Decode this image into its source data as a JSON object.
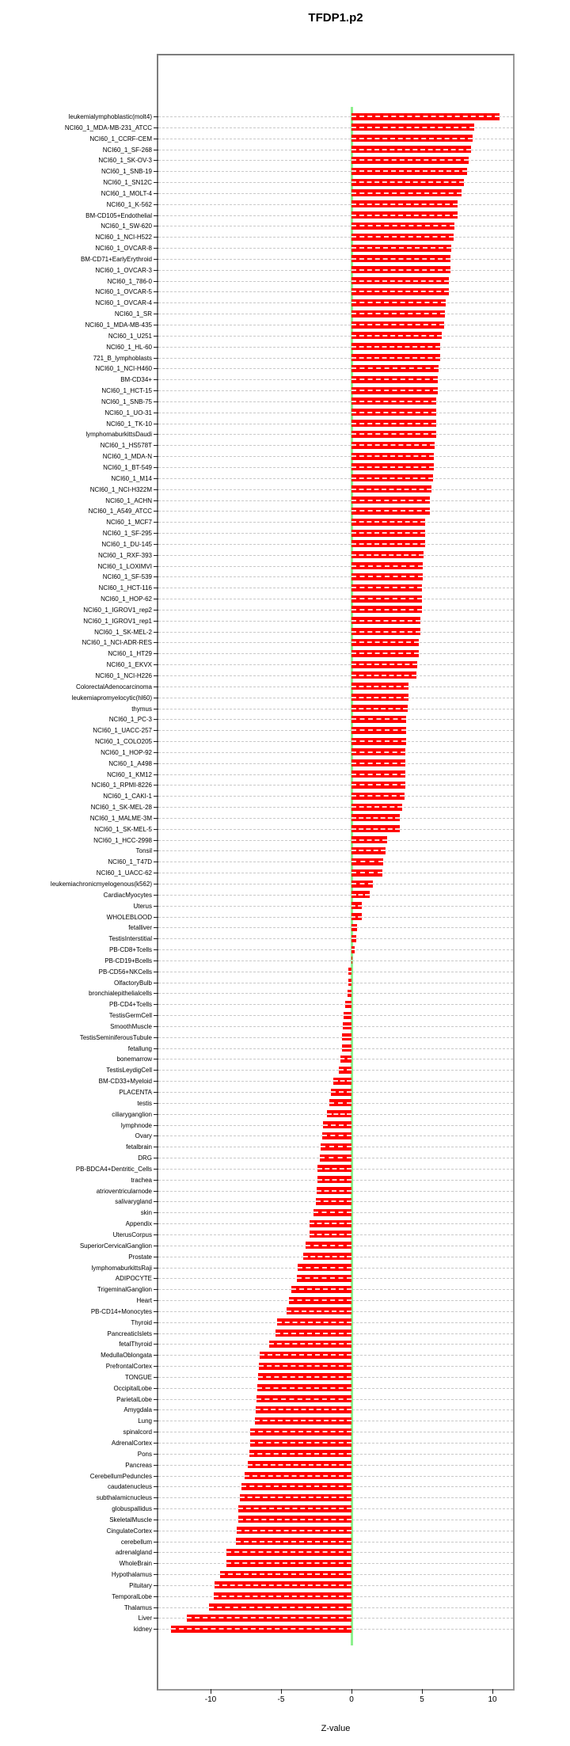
{
  "title": "TFDP1.p2",
  "x_axis": {
    "label": "Z-value",
    "tick_labels": [
      "-10",
      "-5",
      "0",
      "5",
      "10"
    ],
    "tick_values": [
      -10,
      -5,
      0,
      5,
      10
    ]
  },
  "colors": {
    "bar": "#ff0000",
    "zero_line": "#8ef08e",
    "grid": "#c9c9c9",
    "frame": "#8a8a8a"
  },
  "chart_data": {
    "type": "bar",
    "orientation": "horizontal",
    "title": "TFDP1.p2",
    "xlabel": "Z-value",
    "xlim": [
      -13.5,
      11.4
    ],
    "x_ticks": [
      -10,
      -5,
      0,
      5,
      10
    ],
    "grid": true,
    "zero_reference_line": 0,
    "categories": [
      "leukemialymphoblastic(molt4)",
      "NCI60_1_MDA-MB-231_ATCC",
      "NCI60_1_CCRF-CEM",
      "NCI60_1_SF-268",
      "NCI60_1_SK-OV-3",
      "NCI60_1_SNB-19",
      "NCI60_1_SN12C",
      "NCI60_1_MOLT-4",
      "NCI60_1_K-562",
      "BM-CD105+Endothelial",
      "NCI60_1_SW-620",
      "NCI60_1_NCI-H522",
      "NCI60_1_OVCAR-8",
      "BM-CD71+EarlyErythroid",
      "NCI60_1_OVCAR-3",
      "NCI60_1_786-0",
      "NCI60_1_OVCAR-5",
      "NCI60_1_OVCAR-4",
      "NCI60_1_SR",
      "NCI60_1_MDA-MB-435",
      "NCI60_1_U251",
      "NCI60_1_HL-60",
      "721_B_lymphoblasts",
      "NCI60_1_NCI-H460",
      "BM-CD34+",
      "NCI60_1_HCT-15",
      "NCI60_1_SNB-75",
      "NCI60_1_UO-31",
      "NCI60_1_TK-10",
      "lymphomaburkittsDaudi",
      "NCI60_1_HS578T",
      "NCI60_1_MDA-N",
      "NCI60_1_BT-549",
      "NCI60_1_M14",
      "NCI60_1_NCI-H322M",
      "NCI60_1_ACHN",
      "NCI60_1_A549_ATCC",
      "NCI60_1_MCF7",
      "NCI60_1_SF-295",
      "NCI60_1_DU-145",
      "NCI60_1_RXF-393",
      "NCI60_1_LOXIMVI",
      "NCI60_1_SF-539",
      "NCI60_1_HCT-116",
      "NCI60_1_HOP-62",
      "NCI60_1_IGROV1_rep2",
      "NCI60_1_IGROV1_rep1",
      "NCI60_1_SK-MEL-2",
      "NCI60_1_NCI-ADR-RES",
      "NCI60_1_HT29",
      "NCI60_1_EKVX",
      "NCI60_1_NCI-H226",
      "ColorectalAdenocarcinoma",
      "leukemiapromyelocytic(hl60)",
      "thymus",
      "NCI60_1_PC-3",
      "NCI60_1_UACC-257",
      "NCI60_1_COLO205",
      "NCI60_1_HOP-92",
      "NCI60_1_A498",
      "NCI60_1_KM12",
      "NCI60_1_RPMI-8226",
      "NCI60_1_CAKI-1",
      "NCI60_1_SK-MEL-28",
      "NCI60_1_MALME-3M",
      "NCI60_1_SK-MEL-5",
      "NCI60_1_HCC-2998",
      "Tonsil",
      "NCI60_1_T47D",
      "NCI60_1_UACC-62",
      "leukemiachronicmyelogenous(k562)",
      "CardiacMyocytes",
      "Uterus",
      "WHOLEBLOOD",
      "fetalliver",
      "TestisInterstitial",
      "PB-CD8+Tcells",
      "PB-CD19+Bcells",
      "PB-CD56+NKCells",
      "OlfactoryBulb",
      "bronchialepithelialcells",
      "PB-CD4+Tcells",
      "TestisGermCell",
      "SmoothMuscle",
      "TestisSeminiferousTubule",
      "fetallung",
      "bonemarrow",
      "TestisLeydigCell",
      "BM-CD33+Myeloid",
      "PLACENTA",
      "testis",
      "ciliaryganglion",
      "lymphnode",
      "Ovary",
      "fetalbrain",
      "DRG",
      "PB-BDCA4+Dentritic_Cells",
      "trachea",
      "atrioventricularnode",
      "salivarygland",
      "skin",
      "Appendix",
      "UterusCorpus",
      "SuperiorCervicalGanglion",
      "Prostate",
      "lymphomaburkittsRaji",
      "ADIPOCYTE",
      "TrigeminalGanglion",
      "Heart",
      "PB-CD14+Monocytes",
      "Thyroid",
      "PancreaticIslets",
      "fetalThyroid",
      "MedullaOblongata",
      "PrefrontalCortex",
      "TONGUE",
      "OccipitalLobe",
      "ParietalLobe",
      "Amygdala",
      "Lung",
      "spinalcord",
      "AdrenalCortex",
      "Pons",
      "Pancreas",
      "CerebellumPeduncles",
      "caudatenucleus",
      "subthalamicnucleus",
      "globuspallidus",
      "SkeletalMuscle",
      "CingulateCortex",
      "cerebellum",
      "adrenalgland",
      "WholeBrain",
      "Hypothalamus",
      "Pituitary",
      "TemporalLobe",
      "Thalamus",
      "Liver",
      "kidney"
    ],
    "values": [
      10.5,
      8.7,
      8.6,
      8.5,
      8.3,
      8.2,
      8.0,
      7.8,
      7.5,
      7.5,
      7.3,
      7.25,
      7.1,
      7.0,
      7.0,
      6.9,
      6.9,
      6.7,
      6.65,
      6.6,
      6.4,
      6.3,
      6.3,
      6.2,
      6.1,
      6.1,
      6.0,
      6.0,
      6.0,
      6.0,
      5.9,
      5.85,
      5.85,
      5.8,
      5.65,
      5.55,
      5.55,
      5.25,
      5.2,
      5.2,
      5.1,
      5.05,
      5.05,
      5.0,
      5.0,
      5.0,
      4.9,
      4.9,
      4.8,
      4.75,
      4.65,
      4.6,
      4.05,
      4.05,
      4.0,
      3.85,
      3.85,
      3.85,
      3.8,
      3.8,
      3.8,
      3.8,
      3.75,
      3.6,
      3.4,
      3.4,
      2.55,
      2.4,
      2.25,
      2.2,
      1.5,
      1.3,
      0.75,
      0.75,
      0.4,
      0.35,
      0.2,
      0.05,
      -0.2,
      -0.25,
      -0.3,
      -0.45,
      -0.55,
      -0.6,
      -0.65,
      -0.7,
      -0.8,
      -0.9,
      -1.3,
      -1.45,
      -1.6,
      -1.75,
      -2.0,
      -2.1,
      -2.2,
      -2.25,
      -2.4,
      -2.4,
      -2.45,
      -2.55,
      -2.7,
      -3.0,
      -3.0,
      -3.25,
      -3.45,
      -3.8,
      -3.85,
      -4.25,
      -4.45,
      -4.6,
      -5.3,
      -5.4,
      -5.85,
      -6.5,
      -6.6,
      -6.65,
      -6.7,
      -6.75,
      -6.8,
      -6.85,
      -7.2,
      -7.2,
      -7.25,
      -7.35,
      -7.6,
      -7.8,
      -7.9,
      -8.05,
      -8.05,
      -8.15,
      -8.2,
      -8.9,
      -8.9,
      -9.3,
      -9.7,
      -9.75,
      -10.1,
      -11.7,
      -12.8
    ]
  }
}
